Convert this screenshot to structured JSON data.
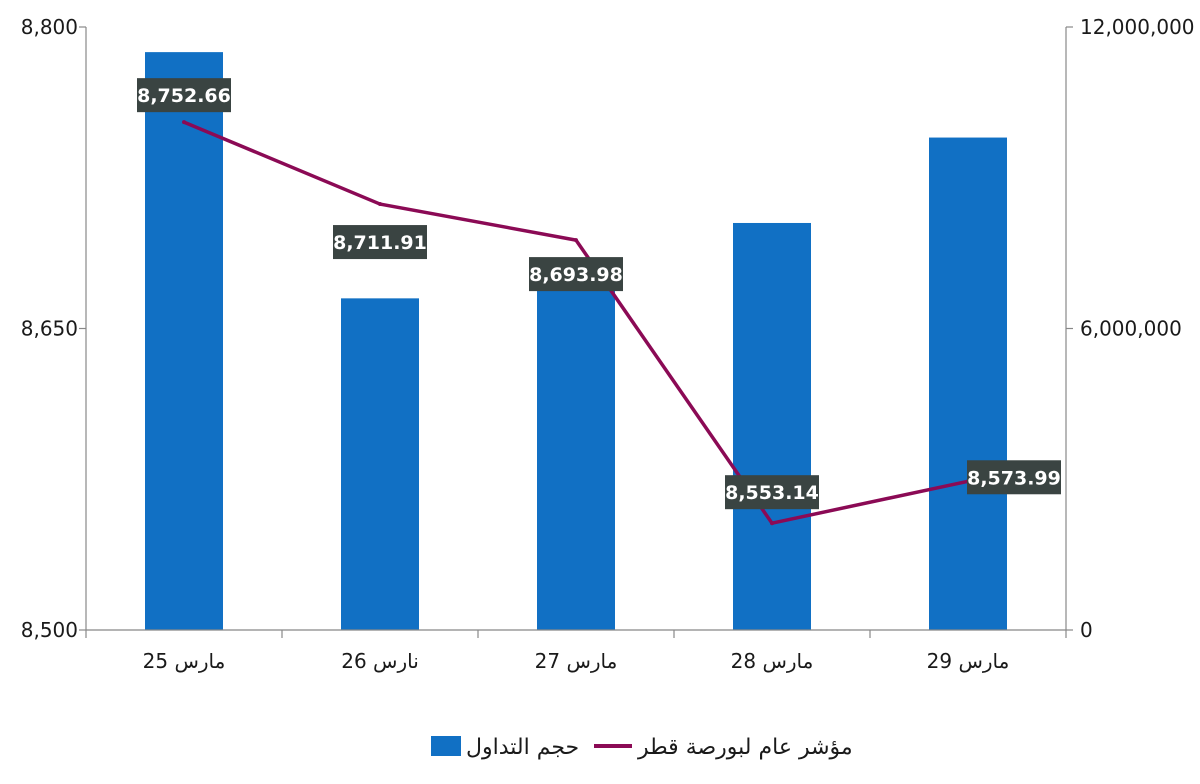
{
  "chart_data": {
    "type": "bar",
    "categories": [
      "25 مارس",
      "26 نارس",
      "27 مارس",
      "28 مارس",
      "29 مارس"
    ],
    "series": [
      {
        "name": "حجم التداول",
        "type": "bar",
        "axis": "right",
        "values": [
          11500000,
          6600000,
          7300000,
          8100000,
          9800000
        ]
      },
      {
        "name": "مؤشر عام لبورصة قطر",
        "type": "line",
        "axis": "left",
        "values": [
          8752.66,
          8711.91,
          8693.98,
          8553.14,
          8573.99
        ],
        "labels": [
          "8,752.66",
          "8,711.91",
          "8,693.98",
          "8,553.14",
          "8,573.99"
        ]
      }
    ],
    "y_left": {
      "min": 8500,
      "max": 8800,
      "ticks": [
        8500,
        8650,
        8800
      ],
      "tick_labels": [
        "8,500",
        "8,650",
        "8,800"
      ]
    },
    "y_right": {
      "min": 0,
      "max": 12000000,
      "ticks": [
        0,
        6000000,
        12000000
      ],
      "tick_labels": [
        "0",
        "6,000,000",
        "12,000,000"
      ]
    },
    "colors": {
      "bar": "#1170C4",
      "line": "#8B0A55",
      "label_bg": "#3A4442",
      "axis": "#888888"
    },
    "grid": false,
    "legend_position": "bottom",
    "title": "",
    "xlabel": "",
    "ylabel": ""
  }
}
